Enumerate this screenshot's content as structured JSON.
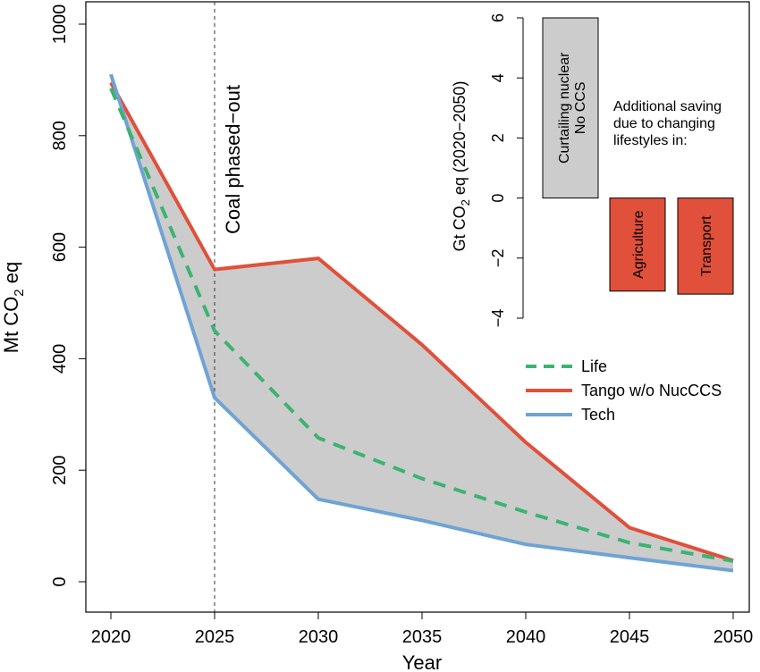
{
  "chart_data": [
    {
      "type": "area",
      "x": [
        2020,
        2025,
        2030,
        2035,
        2040,
        2045,
        2050
      ],
      "series": [
        {
          "name": "Life",
          "color": "#3cb371",
          "dash": true,
          "values": [
            885,
            450,
            258,
            185,
            125,
            70,
            37
          ]
        },
        {
          "name": "Tango w/o NucCCS",
          "color": "#e0503a",
          "values": [
            895,
            560,
            580,
            425,
            250,
            97,
            38
          ]
        },
        {
          "name": "Tech",
          "color": "#6fa3d4",
          "values": [
            910,
            330,
            148,
            110,
            67,
            43,
            20
          ]
        }
      ],
      "shaded_band": {
        "between": [
          "Tango w/o NucCCS",
          "Tech"
        ],
        "color": "#cccccc"
      },
      "xlabel": "Year",
      "ylabel": "Mt CO2 eq",
      "xticks": [
        "2020",
        "2025",
        "2030",
        "2035",
        "2040",
        "2045",
        "2050"
      ],
      "yticks": [
        "0",
        "200",
        "400",
        "600",
        "800",
        "1000"
      ],
      "xlim": [
        2020,
        2050
      ],
      "ylim": [
        0,
        1000
      ],
      "annotations": [
        {
          "x": 2025,
          "text": "Coal phased−out",
          "style": "vertical dashed line"
        }
      ],
      "legend": {
        "placement": "right",
        "entries": [
          "Life",
          "Tango w/o NucCCS",
          "Tech"
        ]
      },
      "grid": false
    },
    {
      "type": "bar",
      "inset": true,
      "categories": [
        "Curtailing nuclear\nNo CCS",
        "Agriculture",
        "Transport"
      ],
      "bars": [
        {
          "label": "Curtailing nuclear",
          "label2": "No CCS",
          "low": 0,
          "high": 6,
          "color": "#cccccc"
        },
        {
          "label": "Agriculture",
          "low": -3.1,
          "high": 0,
          "color": "#e0503a"
        },
        {
          "label": "Transport",
          "low": -3.2,
          "high": 0,
          "color": "#e0503a"
        }
      ],
      "ylabel": "Gt CO2 eq (2020−2050)",
      "yticks": [
        "−4",
        "−2",
        "0",
        "2",
        "4",
        "6"
      ],
      "ylim": [
        -4,
        6
      ],
      "note": [
        "Additional saving",
        "due to changing",
        "lifestyles in:"
      ]
    }
  ]
}
